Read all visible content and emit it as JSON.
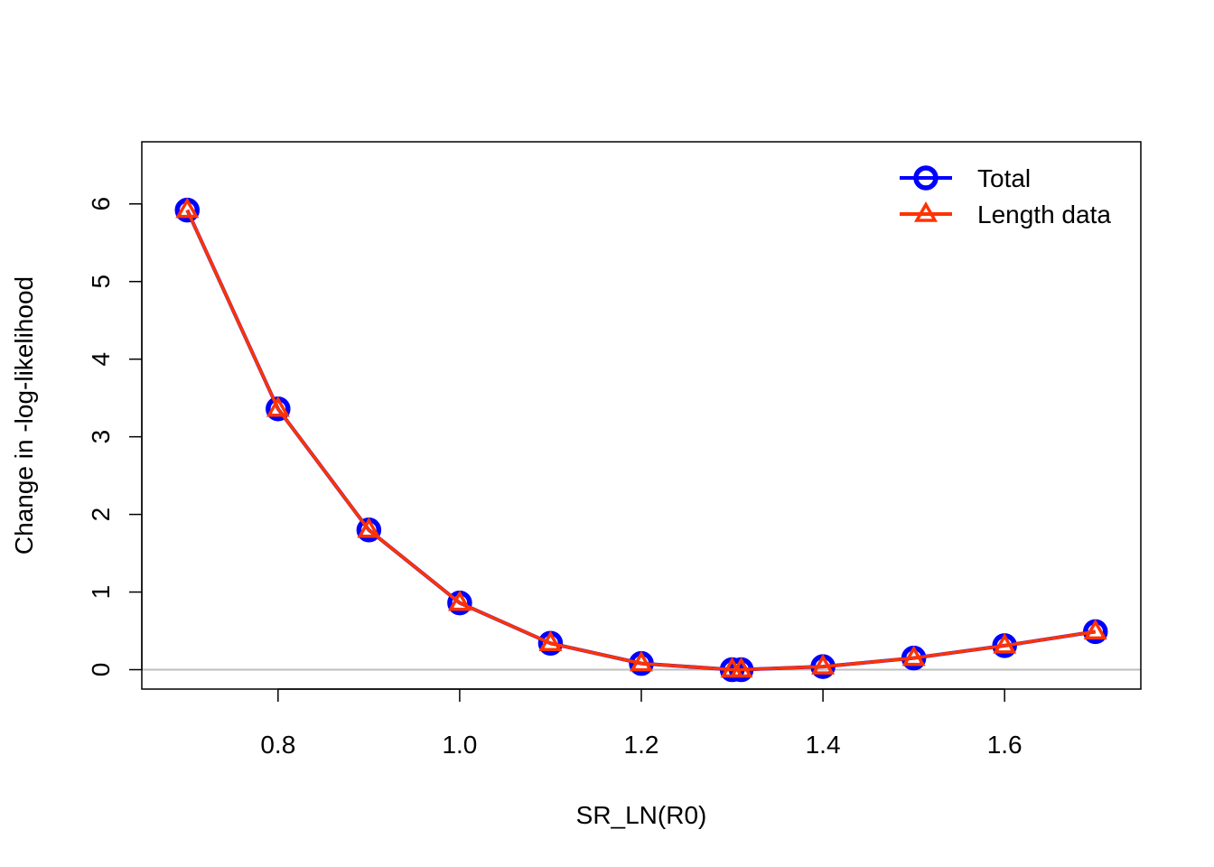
{
  "chart_data": {
    "type": "line",
    "title": "",
    "xlabel": "SR_LN(R0)",
    "ylabel": "Change in -log-likelihood",
    "xlim": [
      0.65,
      1.75
    ],
    "ylim": [
      -0.25,
      6.8
    ],
    "xticks": [
      0.8,
      1.0,
      1.2,
      1.4,
      1.6
    ],
    "xtick_labels": [
      "0.8",
      "1.0",
      "1.2",
      "1.4",
      "1.6"
    ],
    "yticks": [
      0,
      1,
      2,
      3,
      4,
      5,
      6
    ],
    "ytick_labels": [
      "0",
      "1",
      "2",
      "3",
      "4",
      "5",
      "6"
    ],
    "reference_line": {
      "y": 0,
      "color": "#bebebe"
    },
    "grid": false,
    "legend": {
      "position": "top-right"
    },
    "x": [
      0.7,
      0.8,
      0.9,
      1.0,
      1.1,
      1.2,
      1.3,
      1.31,
      1.4,
      1.5,
      1.6,
      1.7
    ],
    "series": [
      {
        "name": "Total",
        "color": "#0000ff",
        "marker": "circle",
        "values": [
          5.92,
          3.36,
          1.8,
          0.86,
          0.34,
          0.08,
          0.0,
          0.0,
          0.04,
          0.15,
          0.31,
          0.49
        ]
      },
      {
        "name": "Length data",
        "color": "#ff3300",
        "marker": "triangle",
        "values": [
          5.92,
          3.36,
          1.8,
          0.86,
          0.34,
          0.08,
          0.0,
          0.0,
          0.04,
          0.15,
          0.31,
          0.49
        ]
      }
    ]
  }
}
